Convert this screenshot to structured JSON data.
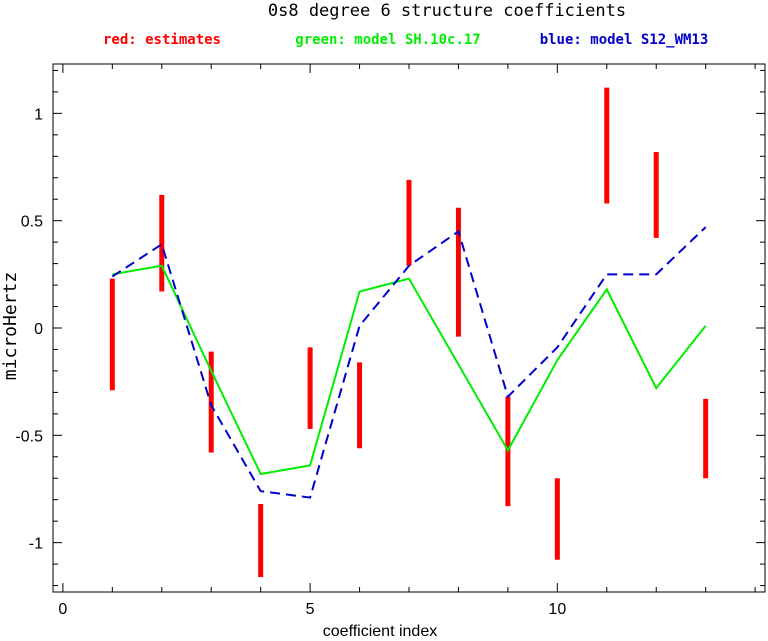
{
  "chart_data": {
    "type": "line",
    "title": "0s8 degree 6 structure coefficients",
    "legend": [
      {
        "text": "red: estimates",
        "color": "#ff0000"
      },
      {
        "text": "green: model SH.10c.17",
        "color": "#00ee00"
      },
      {
        "text": "blue: model S12_WM13",
        "color": "#0000cc"
      }
    ],
    "xlabel": "coefficient index",
    "ylabel": "microHertz",
    "xlim": [
      -0.2,
      14.2
    ],
    "ylim": [
      -1.23,
      1.23
    ],
    "xticks": [
      0,
      5,
      10
    ],
    "xtick_labels": [
      "0",
      "5",
      "10"
    ],
    "yticks": [
      -1,
      -0.5,
      0,
      0.5,
      1
    ],
    "ytick_labels": [
      "-1",
      "-0.5",
      "0",
      "0.5",
      "1"
    ],
    "grid": false,
    "error_bars": {
      "name": "estimates",
      "color": "#ff0000",
      "x": [
        1,
        2,
        3,
        4,
        5,
        6,
        7,
        8,
        9,
        10,
        11,
        12,
        13
      ],
      "low": [
        -0.29,
        0.17,
        -0.58,
        -1.16,
        -0.47,
        -0.56,
        0.29,
        -0.04,
        -0.83,
        -1.08,
        0.58,
        0.42,
        -0.7
      ],
      "high": [
        0.23,
        0.62,
        -0.11,
        -0.82,
        -0.09,
        -0.16,
        0.69,
        0.56,
        -0.32,
        -0.7,
        1.12,
        0.82,
        -0.33
      ]
    },
    "series": [
      {
        "name": "model SH.10c.17",
        "color": "#00ee00",
        "style": "solid",
        "x": [
          1,
          2,
          3,
          4,
          5,
          6,
          7,
          8,
          9,
          10,
          11,
          12,
          13
        ],
        "y": [
          0.25,
          0.29,
          -0.2,
          -0.68,
          -0.64,
          0.17,
          0.23,
          -0.17,
          -0.57,
          -0.15,
          0.18,
          -0.28,
          0.01
        ]
      },
      {
        "name": "model S12_WM13",
        "color": "#0000cc",
        "style": "dashed",
        "x": [
          1,
          2,
          3,
          4,
          5,
          6,
          7,
          8,
          9,
          10,
          11,
          12,
          13
        ],
        "y": [
          0.24,
          0.39,
          -0.36,
          -0.76,
          -0.79,
          0.01,
          0.29,
          0.45,
          -0.32,
          -0.09,
          0.25,
          0.25,
          0.47
        ]
      }
    ]
  }
}
